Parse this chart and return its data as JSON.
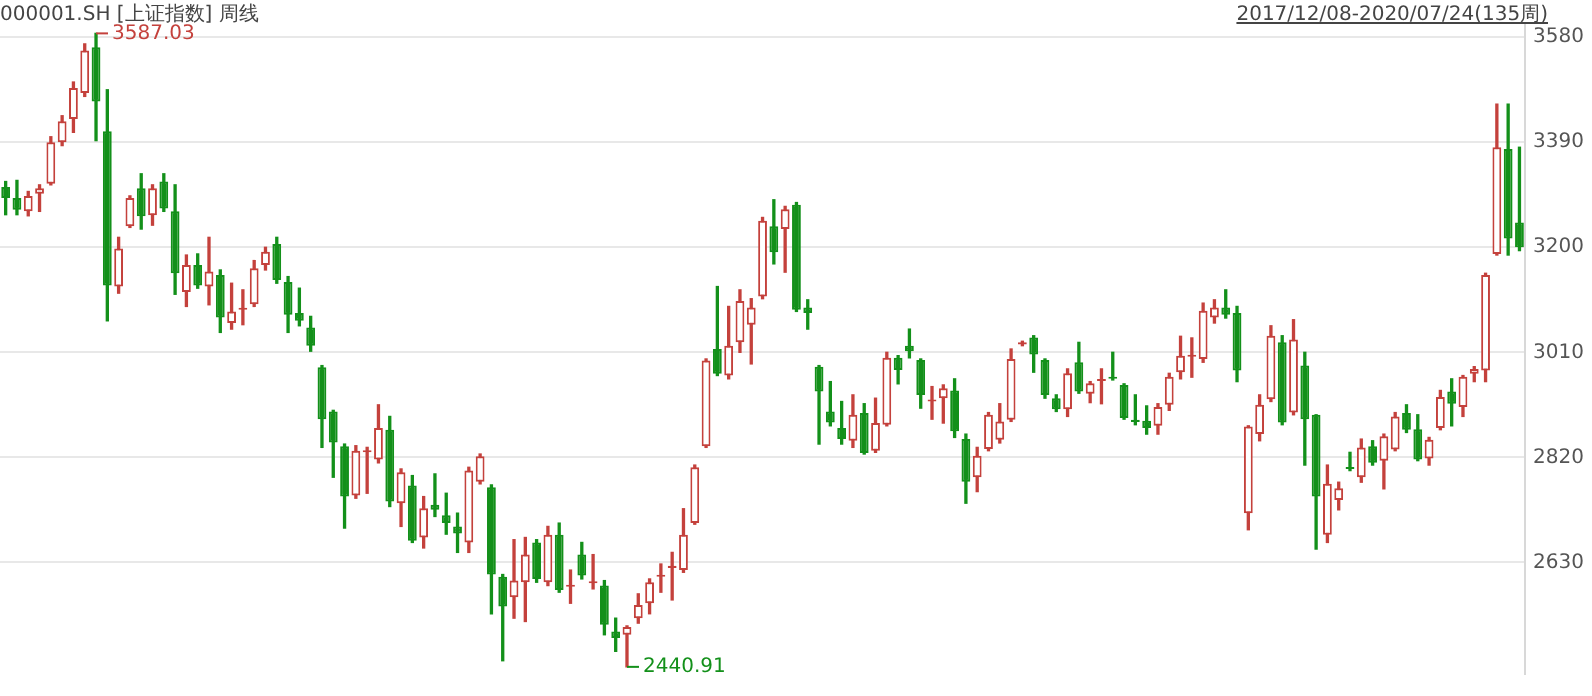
{
  "chart_data": {
    "type": "candlestick",
    "title": "000001.SH [上证指数] 周线",
    "subtitle": "2017/12/08-2020/07/24(135周)",
    "categories": [
      null,
      null,
      null,
      null,
      null,
      null,
      null,
      null,
      null,
      null,
      null,
      null,
      null,
      null,
      null,
      null,
      null,
      null,
      null,
      null,
      null,
      null,
      null,
      null,
      null,
      null,
      null,
      null,
      null,
      null,
      null,
      null,
      null,
      null,
      null,
      null,
      null,
      null,
      null,
      null,
      null,
      null,
      null,
      null,
      null,
      null,
      null,
      null,
      null,
      null,
      null,
      null,
      null,
      null,
      null,
      null,
      null,
      null,
      null,
      null,
      null,
      null,
      null,
      null,
      null,
      null,
      null,
      null,
      null,
      null,
      null,
      null,
      null,
      null,
      null,
      null,
      null,
      null,
      null,
      null,
      null,
      null,
      null,
      null,
      null,
      null,
      null,
      null,
      null,
      null,
      null,
      null,
      null,
      null,
      null,
      null,
      null,
      null,
      null,
      null,
      null,
      null,
      null,
      null,
      null,
      null,
      null,
      null,
      null,
      null,
      null,
      null,
      null,
      null,
      null,
      null,
      null,
      null,
      null,
      null,
      null,
      null,
      null,
      null,
      null,
      null,
      null,
      null,
      null,
      null,
      null,
      null,
      null,
      null,
      null
    ],
    "ohlc": [
      [
        3309,
        3319,
        3259,
        3289
      ],
      [
        3289,
        3321,
        3259,
        3268
      ],
      [
        3265,
        3301,
        3257,
        3293
      ],
      [
        3297,
        3313,
        3265,
        3307
      ],
      [
        3315,
        3400,
        3313,
        3390
      ],
      [
        3390,
        3438,
        3384,
        3428
      ],
      [
        3432,
        3499,
        3408,
        3488
      ],
      [
        3479,
        3568,
        3473,
        3556
      ],
      [
        3562,
        3587.03,
        3393,
        3464
      ],
      [
        3410,
        3485,
        3067,
        3131
      ],
      [
        3129,
        3218,
        3117,
        3198
      ],
      [
        3238,
        3293,
        3236,
        3289
      ],
      [
        3307,
        3333,
        3233,
        3256
      ],
      [
        3258,
        3313,
        3240,
        3307
      ],
      [
        3319,
        3333,
        3265,
        3270
      ],
      [
        3265,
        3313,
        3115,
        3153
      ],
      [
        3119,
        3186,
        3093,
        3168
      ],
      [
        3168,
        3188,
        3126,
        3131
      ],
      [
        3129,
        3218,
        3096,
        3156
      ],
      [
        3150,
        3159,
        3046,
        3073
      ],
      [
        3063,
        3135,
        3052,
        3084
      ],
      [
        3087,
        3123,
        3060,
        3090
      ],
      [
        3097,
        3176,
        3093,
        3162
      ],
      [
        3168,
        3200,
        3159,
        3192
      ],
      [
        3206,
        3218,
        3135,
        3141
      ],
      [
        3137,
        3147,
        3046,
        3078
      ],
      [
        3081,
        3126,
        3058,
        3067
      ],
      [
        3055,
        3075,
        3012,
        3022
      ],
      [
        2983,
        2986,
        2838,
        2889
      ],
      [
        2903,
        2905,
        2784,
        2847
      ],
      [
        2840,
        2844,
        2692,
        2749
      ],
      [
        2751,
        2841,
        2746,
        2832
      ],
      [
        2829,
        2838,
        2755,
        2832
      ],
      [
        2816,
        2915,
        2810,
        2873
      ],
      [
        2870,
        2894,
        2731,
        2740
      ],
      [
        2737,
        2799,
        2695,
        2793
      ],
      [
        2769,
        2787,
        2666,
        2669
      ],
      [
        2675,
        2749,
        2656,
        2728
      ],
      [
        2734,
        2790,
        2713,
        2725
      ],
      [
        2715,
        2755,
        2681,
        2701
      ],
      [
        2695,
        2719,
        2648,
        2682
      ],
      [
        2666,
        2802,
        2648,
        2796
      ],
      [
        2776,
        2826,
        2772,
        2822
      ],
      [
        2766,
        2770,
        2537,
        2608
      ],
      [
        2604,
        2608,
        2452,
        2550
      ],
      [
        2567,
        2671,
        2529,
        2597
      ],
      [
        2594,
        2675,
        2523,
        2644
      ],
      [
        2666,
        2671,
        2594,
        2600
      ],
      [
        2594,
        2695,
        2588,
        2680
      ],
      [
        2680,
        2701,
        2576,
        2580
      ],
      [
        2586,
        2616,
        2556,
        2588
      ],
      [
        2644,
        2666,
        2600,
        2606
      ],
      [
        2592,
        2644,
        2582,
        2594
      ],
      [
        2588,
        2597,
        2499,
        2517
      ],
      [
        2505,
        2529,
        2469,
        2493
      ],
      [
        2499,
        2515,
        2440.91,
        2513
      ],
      [
        2529,
        2573,
        2520,
        2553
      ],
      [
        2556,
        2600,
        2537,
        2594
      ],
      [
        2604,
        2627,
        2576,
        2606
      ],
      [
        2620,
        2648,
        2562,
        2624
      ],
      [
        2616,
        2727,
        2612,
        2680
      ],
      [
        2701,
        2806,
        2699,
        2802
      ],
      [
        2840,
        2998,
        2838,
        2995
      ],
      [
        3016,
        3129,
        2968,
        2971
      ],
      [
        2968,
        3093,
        2962,
        3022
      ],
      [
        3028,
        3123,
        3010,
        3103
      ],
      [
        3060,
        3107,
        2989,
        3091
      ],
      [
        3111,
        3254,
        3107,
        3248
      ],
      [
        3238,
        3286,
        3170,
        3191
      ],
      [
        3233,
        3274,
        3155,
        3269
      ],
      [
        3277,
        3281,
        3084,
        3087
      ],
      [
        3091,
        3105,
        3052,
        3081
      ],
      [
        2984,
        2986,
        2844,
        2939
      ],
      [
        2903,
        2957,
        2877,
        2883
      ],
      [
        2873,
        2921,
        2844,
        2853
      ],
      [
        2850,
        2933,
        2838,
        2897
      ],
      [
        2900,
        2917,
        2826,
        2828
      ],
      [
        2832,
        2927,
        2829,
        2882
      ],
      [
        2879,
        3010,
        2877,
        3000
      ],
      [
        3000,
        3004,
        2953,
        2978
      ],
      [
        3022,
        3052,
        3000,
        3012
      ],
      [
        2996,
        2998,
        2909,
        2933
      ],
      [
        2921,
        2948,
        2889,
        2923
      ],
      [
        2927,
        2951,
        2882,
        2945
      ],
      [
        2941,
        2962,
        2856,
        2867
      ],
      [
        2853,
        2862,
        2737,
        2776
      ],
      [
        2784,
        2838,
        2758,
        2823
      ],
      [
        2835,
        2901,
        2832,
        2897
      ],
      [
        2852,
        2917,
        2846,
        2885
      ],
      [
        2888,
        3016,
        2885,
        2998
      ],
      [
        3024,
        3030,
        3022,
        3028
      ],
      [
        3037,
        3040,
        2974,
        3006
      ],
      [
        2996,
        2998,
        2927,
        2933
      ],
      [
        2927,
        2933,
        2903,
        2907
      ],
      [
        2907,
        2980,
        2894,
        2972
      ],
      [
        2992,
        3028,
        2936,
        2939
      ],
      [
        2935,
        2957,
        2919,
        2954
      ],
      [
        2958,
        2980,
        2917,
        2960
      ],
      [
        2966,
        3010,
        2960,
        2962
      ],
      [
        2951,
        2953,
        2889,
        2891
      ],
      [
        2888,
        2933,
        2879,
        2884
      ],
      [
        2886,
        2913,
        2862,
        2873
      ],
      [
        2877,
        2917,
        2862,
        2911
      ],
      [
        2915,
        2972,
        2905,
        2966
      ],
      [
        2974,
        3039,
        2962,
        3004
      ],
      [
        3002,
        3036,
        2965,
        3004
      ],
      [
        2998,
        3099,
        2992,
        3085
      ],
      [
        3073,
        3105,
        3063,
        3091
      ],
      [
        3091,
        3123,
        3072,
        3078
      ],
      [
        3081,
        3093,
        2957,
        2977
      ],
      [
        2719,
        2877,
        2689,
        2876
      ],
      [
        2862,
        2933,
        2850,
        2915
      ],
      [
        2925,
        3058,
        2921,
        3040
      ],
      [
        3028,
        3040,
        2879,
        2883
      ],
      [
        2901,
        3069,
        2897,
        3033
      ],
      [
        2986,
        3010,
        2806,
        2889
      ],
      [
        2897,
        2897,
        2654,
        2749
      ],
      [
        2680,
        2806,
        2666,
        2772
      ],
      [
        2743,
        2775,
        2725,
        2764
      ],
      [
        2802,
        2829,
        2796,
        2799
      ],
      [
        2784,
        2853,
        2775,
        2838
      ],
      [
        2840,
        2850,
        2806,
        2810
      ],
      [
        2814,
        2862,
        2763,
        2858
      ],
      [
        2834,
        2901,
        2832,
        2894
      ],
      [
        2900,
        2915,
        2865,
        2870
      ],
      [
        2871,
        2897,
        2814,
        2816
      ],
      [
        2818,
        2856,
        2806,
        2852
      ],
      [
        2873,
        2941,
        2870,
        2929
      ],
      [
        2939,
        2962,
        2877,
        2917
      ],
      [
        2911,
        2968,
        2894,
        2966
      ],
      [
        2971,
        2984,
        2957,
        2980
      ],
      [
        2977,
        3153,
        2957,
        3150
      ],
      [
        3188,
        3459,
        3186,
        3381
      ],
      [
        3378,
        3459,
        3186,
        3216
      ],
      [
        3245,
        3381,
        3194,
        3200
      ]
    ],
    "colors": [
      "#13901a",
      "#13901a",
      "#c4413c",
      "#c4413c",
      "#c4413c",
      "#c4413c",
      "#c4413c",
      "#c4413c",
      "#13901a",
      "#13901a",
      "#c4413c",
      "#c4413c",
      "#13901a",
      "#c4413c",
      "#13901a",
      "#13901a",
      "#c4413c",
      "#13901a",
      "#c4413c",
      "#13901a",
      "#c4413c",
      "#c4413c",
      "#c4413c",
      "#c4413c",
      "#13901a",
      "#13901a",
      "#13901a",
      "#13901a",
      "#13901a",
      "#13901a",
      "#13901a",
      "#c4413c",
      "#c4413c",
      "#c4413c",
      "#13901a",
      "#c4413c",
      "#13901a",
      "#c4413c",
      "#13901a",
      "#13901a",
      "#13901a",
      "#c4413c",
      "#c4413c",
      "#13901a",
      "#13901a",
      "#c4413c",
      "#c4413c",
      "#13901a",
      "#c4413c",
      "#13901a",
      "#c4413c",
      "#13901a",
      "#c4413c",
      "#13901a",
      "#13901a",
      "#c4413c",
      "#c4413c",
      "#c4413c",
      "#c4413c",
      "#c4413c",
      "#c4413c",
      "#c4413c",
      "#c4413c",
      "#13901a",
      "#c4413c",
      "#c4413c",
      "#c4413c",
      "#c4413c",
      "#13901a",
      "#c4413c",
      "#13901a",
      "#13901a",
      "#13901a",
      "#13901a",
      "#13901a",
      "#c4413c",
      "#13901a",
      "#c4413c",
      "#c4413c",
      "#13901a",
      "#13901a",
      "#13901a",
      "#c4413c",
      "#c4413c",
      "#13901a",
      "#13901a",
      "#c4413c",
      "#c4413c",
      "#c4413c",
      "#c4413c",
      "#c4413c",
      "#13901a",
      "#13901a",
      "#13901a",
      "#c4413c",
      "#13901a",
      "#c4413c",
      "#c4413c",
      "#13901a",
      "#13901a",
      "#13901a",
      "#13901a",
      "#c4413c",
      "#c4413c",
      "#c4413c",
      "#c4413c",
      "#c4413c",
      "#c4413c",
      "#13901a",
      "#13901a",
      "#c4413c",
      "#c4413c",
      "#c4413c",
      "#13901a",
      "#c4413c",
      "#13901a",
      "#13901a",
      "#c4413c",
      "#c4413c",
      "#13901a",
      "#c4413c",
      "#13901a",
      "#c4413c",
      "#c4413c",
      "#13901a",
      "#13901a",
      "#c4413c",
      "#c4413c",
      "#13901a",
      "#c4413c",
      "#c4413c",
      "#c4413c",
      "#c4413c",
      "#13901a",
      "#13901a"
    ],
    "ylim": [
      2428,
      3604
    ],
    "yticks": [
      3580,
      3390,
      3200,
      3010,
      2820,
      2630
    ],
    "grid": "y",
    "annotations": [
      "3587.03",
      "2440.91"
    ]
  }
}
